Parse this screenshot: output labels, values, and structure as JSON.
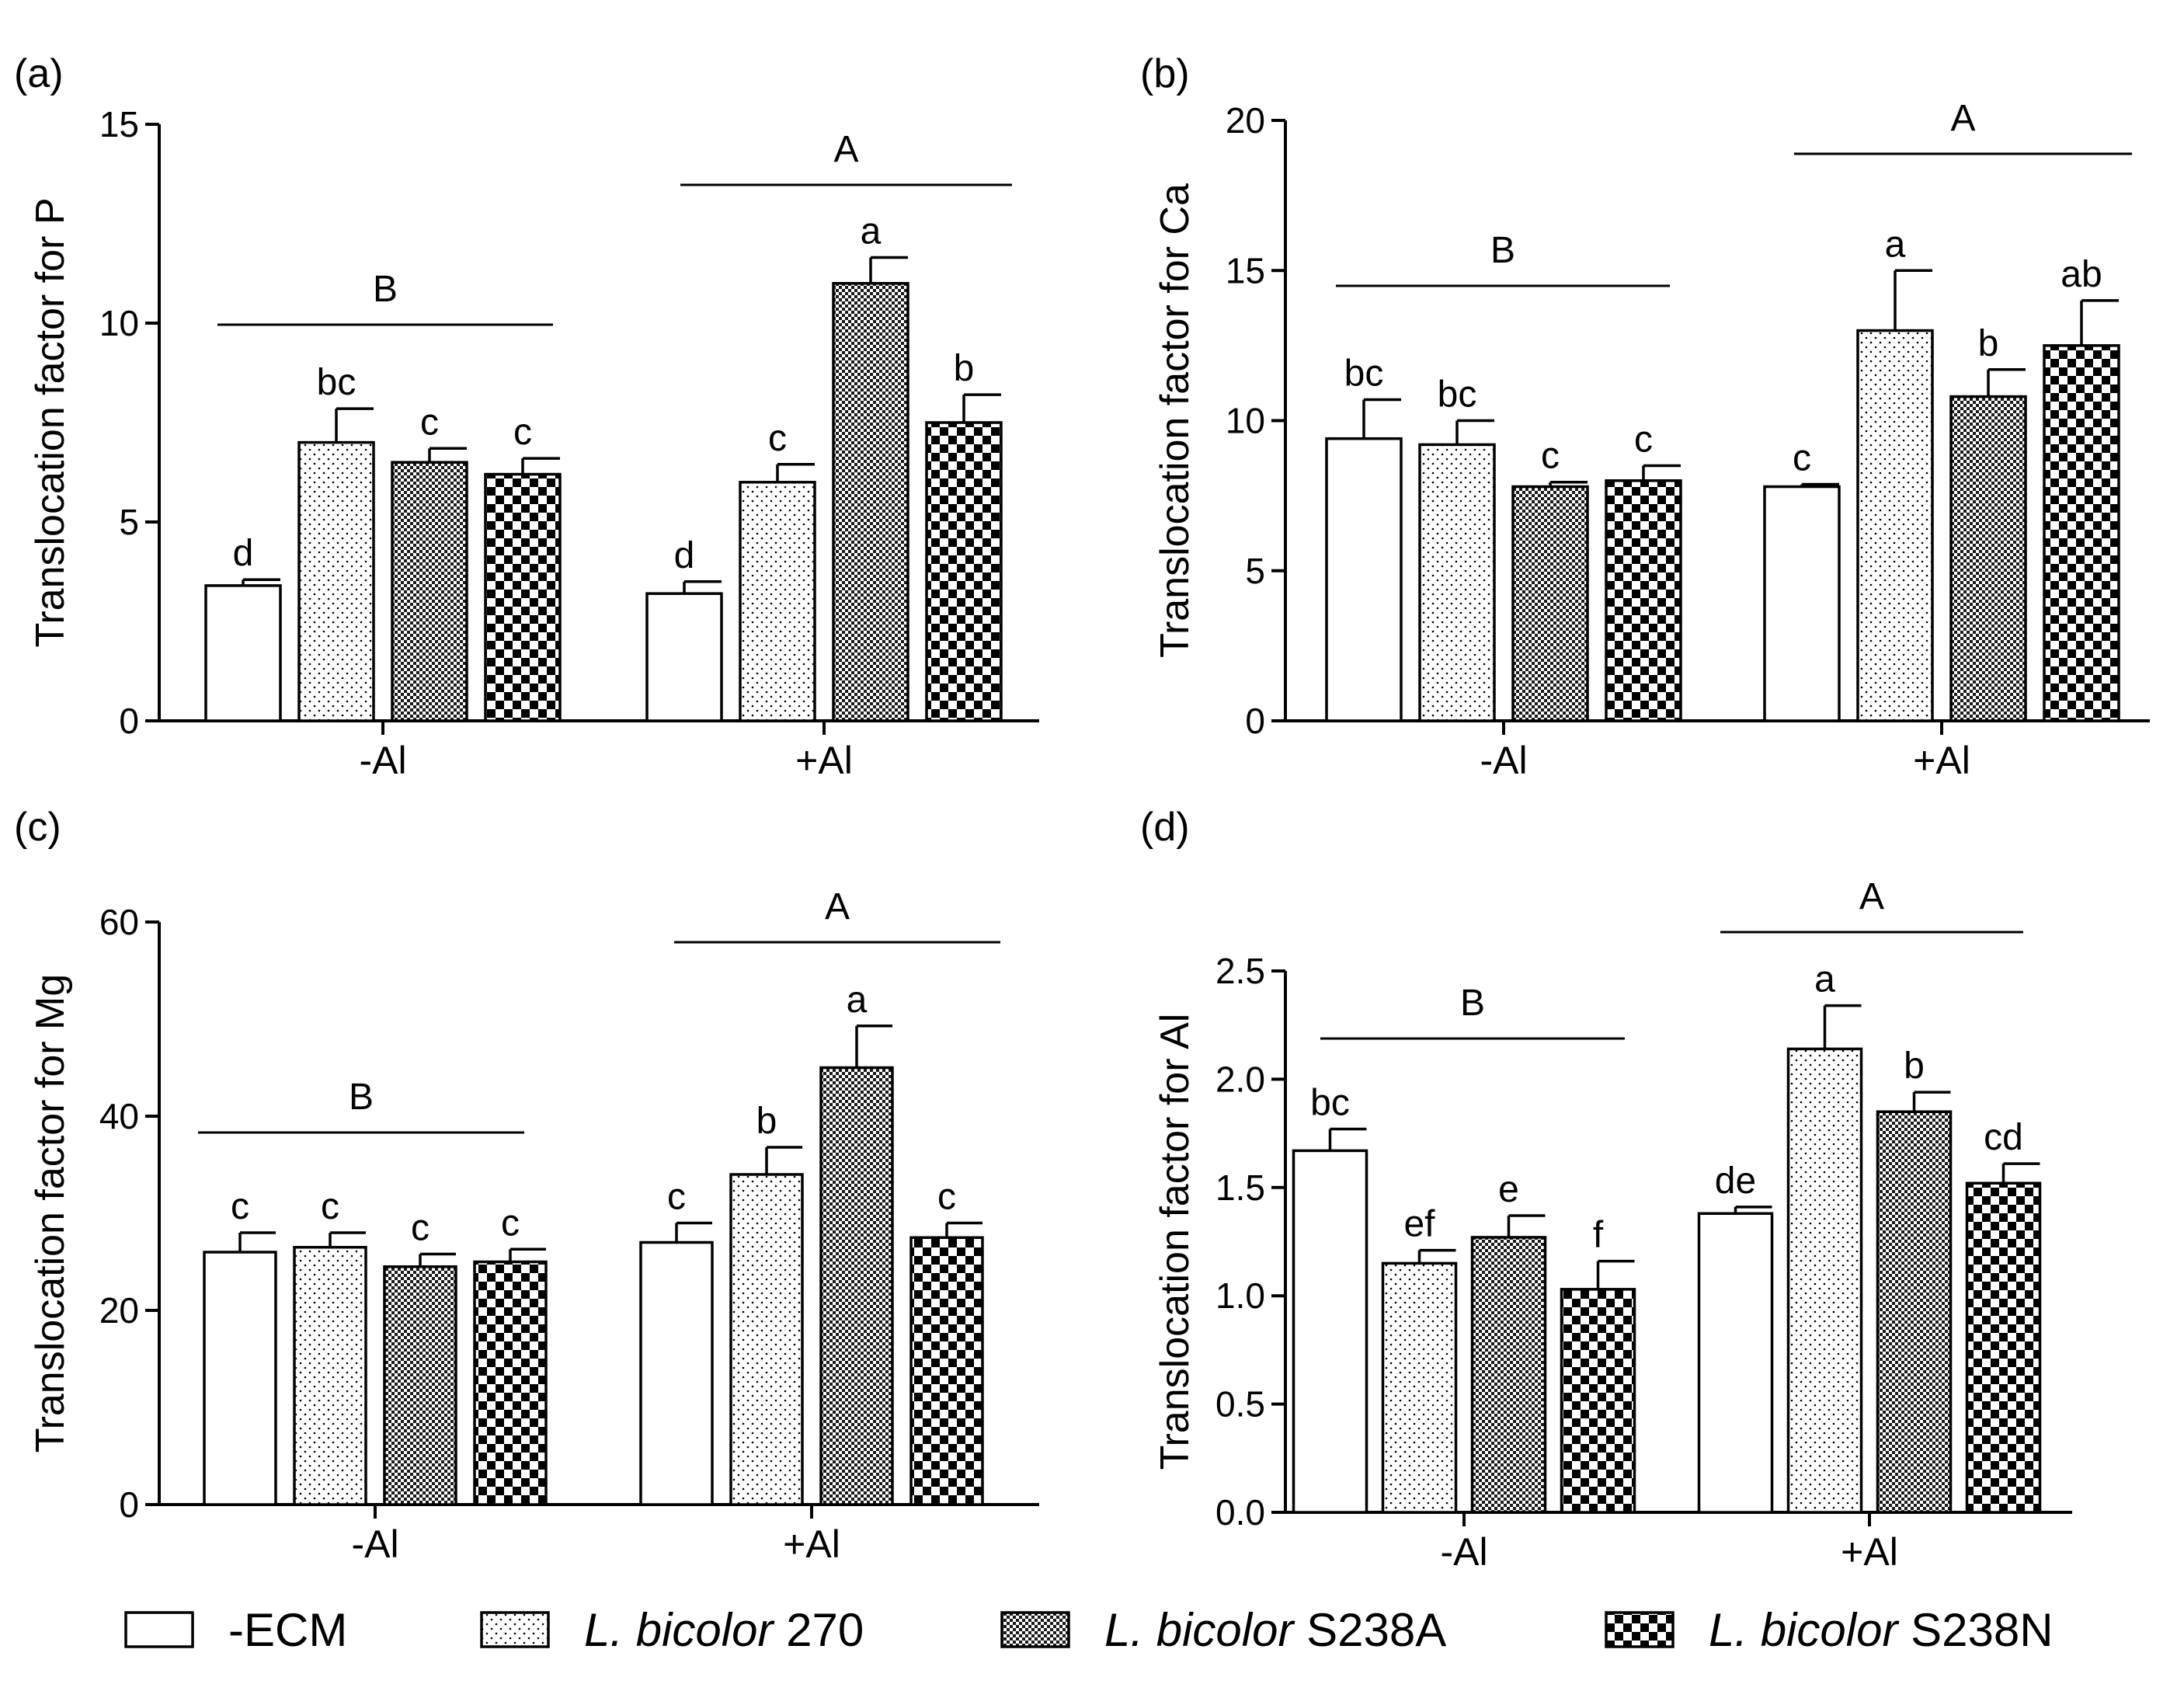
{
  "chart_data": [
    {
      "type": "bar",
      "panel_label": "(a)",
      "ylabel": "Translocation factor for P",
      "ylim": [
        0,
        15
      ],
      "yticks": [
        "0",
        "5",
        "10",
        "15"
      ],
      "tick_values": [
        0,
        5,
        10,
        15
      ],
      "groups": [
        "-Al",
        "+Al"
      ],
      "series": [
        {
          "name": "-ECM",
          "values": [
            3.4,
            3.2
          ],
          "errors": [
            0.15,
            0.3
          ],
          "letters": [
            "d",
            "d"
          ]
        },
        {
          "name": "L. bicolor 270",
          "values": [
            7.0,
            6.0
          ],
          "errors": [
            0.85,
            0.45
          ],
          "letters": [
            "bc",
            "c"
          ]
        },
        {
          "name": "L. bicolor S238A",
          "values": [
            6.5,
            11.0
          ],
          "errors": [
            0.35,
            0.65
          ],
          "letters": [
            "c",
            "a"
          ]
        },
        {
          "name": "L. bicolor S238N",
          "values": [
            6.2,
            7.5
          ],
          "errors": [
            0.4,
            0.7
          ],
          "letters": [
            "c",
            "b"
          ]
        }
      ],
      "group_letters": [
        "B",
        "A"
      ]
    },
    {
      "type": "bar",
      "panel_label": "(b)",
      "ylabel": "Translocation factor for Ca",
      "ylim": [
        0,
        20
      ],
      "yticks": [
        "0",
        "5",
        "10",
        "15",
        "20"
      ],
      "tick_values": [
        0,
        5,
        10,
        15,
        20
      ],
      "groups": [
        "-Al",
        "+Al"
      ],
      "series": [
        {
          "name": "-ECM",
          "values": [
            9.4,
            7.8
          ],
          "errors": [
            1.3,
            0.08
          ],
          "letters": [
            "bc",
            "c"
          ]
        },
        {
          "name": "L. bicolor 270",
          "values": [
            9.2,
            13.0
          ],
          "errors": [
            0.8,
            2.0
          ],
          "letters": [
            "bc",
            "a"
          ]
        },
        {
          "name": "L. bicolor S238A",
          "values": [
            7.8,
            10.8
          ],
          "errors": [
            0.15,
            0.9
          ],
          "letters": [
            "c",
            "b"
          ]
        },
        {
          "name": "L. bicolor S238N",
          "values": [
            8.0,
            12.5
          ],
          "errors": [
            0.5,
            1.5
          ],
          "letters": [
            "c",
            "ab"
          ]
        }
      ],
      "group_letters": [
        "B",
        "A"
      ]
    },
    {
      "type": "bar",
      "panel_label": "(c)",
      "ylabel": "Translocation factor for Mg",
      "ylim": [
        0,
        60
      ],
      "yticks": [
        "0",
        "20",
        "40",
        "60"
      ],
      "tick_values": [
        0,
        20,
        40,
        60
      ],
      "groups": [
        "-Al",
        "+Al"
      ],
      "series": [
        {
          "name": "-ECM",
          "values": [
            26.0,
            27.0
          ],
          "errors": [
            2.0,
            2.0
          ],
          "letters": [
            "c",
            "c"
          ]
        },
        {
          "name": "L. bicolor 270",
          "values": [
            26.5,
            34.0
          ],
          "errors": [
            1.5,
            2.8
          ],
          "letters": [
            "c",
            "b"
          ]
        },
        {
          "name": "L. bicolor S238A",
          "values": [
            24.5,
            45.0
          ],
          "errors": [
            1.3,
            4.3
          ],
          "letters": [
            "c",
            "a"
          ]
        },
        {
          "name": "L. bicolor S238N",
          "values": [
            25.0,
            27.5
          ],
          "errors": [
            1.3,
            1.5
          ],
          "letters": [
            "c",
            "c"
          ]
        }
      ],
      "group_letters": [
        "B",
        "A"
      ]
    },
    {
      "type": "bar",
      "panel_label": "(d)",
      "ylabel": "Translocation factor for Al",
      "ylim": [
        0,
        2.5
      ],
      "yticks": [
        "0.0",
        "0.5",
        "1.0",
        "1.5",
        "2.0",
        "2.5"
      ],
      "tick_values": [
        0,
        0.5,
        1.0,
        1.5,
        2.0,
        2.5
      ],
      "groups": [
        "-Al",
        "+Al"
      ],
      "series": [
        {
          "name": "-ECM",
          "values": [
            1.67,
            1.38
          ],
          "errors": [
            0.1,
            0.03
          ],
          "letters": [
            "bc",
            "de"
          ]
        },
        {
          "name": "L. bicolor 270",
          "values": [
            1.15,
            2.14
          ],
          "errors": [
            0.06,
            0.2
          ],
          "letters": [
            "ef",
            "a"
          ]
        },
        {
          "name": "L. bicolor S238A",
          "values": [
            1.27,
            1.85
          ],
          "errors": [
            0.1,
            0.09
          ],
          "letters": [
            "e",
            "b"
          ]
        },
        {
          "name": "L. bicolor S238N",
          "values": [
            1.03,
            1.52
          ],
          "errors": [
            0.13,
            0.09
          ],
          "letters": [
            "f",
            "cd"
          ]
        }
      ],
      "group_letters": [
        "B",
        "A"
      ]
    }
  ],
  "legend": [
    {
      "pattern": "none",
      "italic": "",
      "rest": "-ECM"
    },
    {
      "pattern": "dots",
      "italic": "L. bicolor",
      "rest": " 270"
    },
    {
      "pattern": "fine-check",
      "italic": "L. bicolor",
      "rest": " S238A"
    },
    {
      "pattern": "coarse-check",
      "italic": "L. bicolor",
      "rest": " S238N"
    }
  ]
}
